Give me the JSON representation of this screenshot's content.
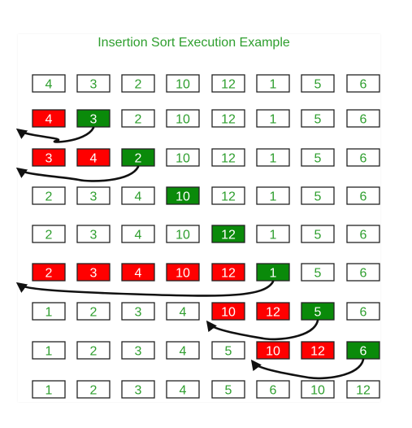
{
  "title": "Insertion Sort Execution Example",
  "colors": {
    "title": "#2e9e2e",
    "normal_fill": "#ffffff",
    "normal_text": "#2e9e2e",
    "shifted_fill": "#ff0000",
    "key_fill": "#0a8a0a",
    "highlight_text": "#ffffff",
    "border": "#222222",
    "arrow": "#111111"
  },
  "rows": [
    {
      "values": [
        "4",
        "3",
        "2",
        "10",
        "12",
        "1",
        "5",
        "6"
      ],
      "states": [
        "n",
        "n",
        "n",
        "n",
        "n",
        "n",
        "n",
        "n"
      ]
    },
    {
      "values": [
        "4",
        "3",
        "2",
        "10",
        "12",
        "1",
        "5",
        "6"
      ],
      "states": [
        "r",
        "g",
        "n",
        "n",
        "n",
        "n",
        "n",
        "n"
      ],
      "arrow": {
        "from": 1,
        "to": 0
      }
    },
    {
      "values": [
        "3",
        "4",
        "2",
        "10",
        "12",
        "1",
        "5",
        "6"
      ],
      "states": [
        "r",
        "r",
        "g",
        "n",
        "n",
        "n",
        "n",
        "n"
      ],
      "arrow": {
        "from": 2,
        "to": 0
      }
    },
    {
      "values": [
        "2",
        "3",
        "4",
        "10",
        "12",
        "1",
        "5",
        "6"
      ],
      "states": [
        "n",
        "n",
        "n",
        "g",
        "n",
        "n",
        "n",
        "n"
      ]
    },
    {
      "values": [
        "2",
        "3",
        "4",
        "10",
        "12",
        "1",
        "5",
        "6"
      ],
      "states": [
        "n",
        "n",
        "n",
        "n",
        "g",
        "n",
        "n",
        "n"
      ]
    },
    {
      "values": [
        "2",
        "3",
        "4",
        "10",
        "12",
        "1",
        "5",
        "6"
      ],
      "states": [
        "r",
        "r",
        "r",
        "r",
        "r",
        "g",
        "n",
        "n"
      ],
      "arrow": {
        "from": 5,
        "to": 0
      }
    },
    {
      "values": [
        "1",
        "2",
        "3",
        "4",
        "10",
        "12",
        "5",
        "6"
      ],
      "states": [
        "n",
        "n",
        "n",
        "n",
        "r",
        "r",
        "g",
        "n"
      ],
      "arrow": {
        "from": 6,
        "to": 4
      }
    },
    {
      "values": [
        "1",
        "2",
        "3",
        "4",
        "5",
        "10",
        "12",
        "6"
      ],
      "states": [
        "n",
        "n",
        "n",
        "n",
        "n",
        "r",
        "r",
        "g"
      ],
      "arrow": {
        "from": 7,
        "to": 5
      }
    },
    {
      "values": [
        "1",
        "2",
        "3",
        "4",
        "5",
        "6",
        "10",
        "12"
      ],
      "states": [
        "n",
        "n",
        "n",
        "n",
        "n",
        "n",
        "n",
        "n"
      ]
    }
  ]
}
